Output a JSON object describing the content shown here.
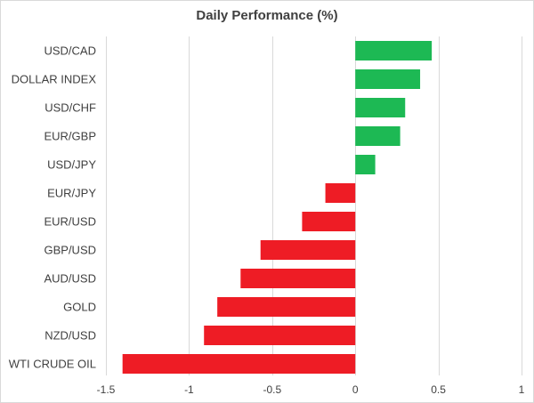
{
  "chart_data": {
    "type": "bar",
    "orientation": "horizontal",
    "title": "Daily Performance (%)",
    "xlabel": "",
    "ylabel": "",
    "categories": [
      "USD/CAD",
      "DOLLAR INDEX",
      "USD/CHF",
      "EUR/GBP",
      "USD/JPY",
      "EUR/JPY",
      "EUR/USD",
      "GBP/USD",
      "AUD/USD",
      "GOLD",
      "NZD/USD",
      "WTI CRUDE OIL"
    ],
    "values": [
      0.46,
      0.39,
      0.3,
      0.27,
      0.12,
      -0.18,
      -0.32,
      -0.57,
      -0.69,
      -0.83,
      -0.91,
      -1.4
    ],
    "xlim": [
      -1.5,
      1
    ],
    "xticks": [
      "-1.5",
      "-1",
      "-0.5",
      "0",
      "0.5",
      "1"
    ],
    "xtick_values": [
      -1.5,
      -1,
      -0.5,
      0,
      0.5,
      1
    ],
    "grid": "vertical",
    "legend": "none",
    "colors": {
      "positive": "#1db954",
      "negative": "#ee1c25",
      "grid": "#d9d9d9",
      "text": "#404040"
    }
  }
}
